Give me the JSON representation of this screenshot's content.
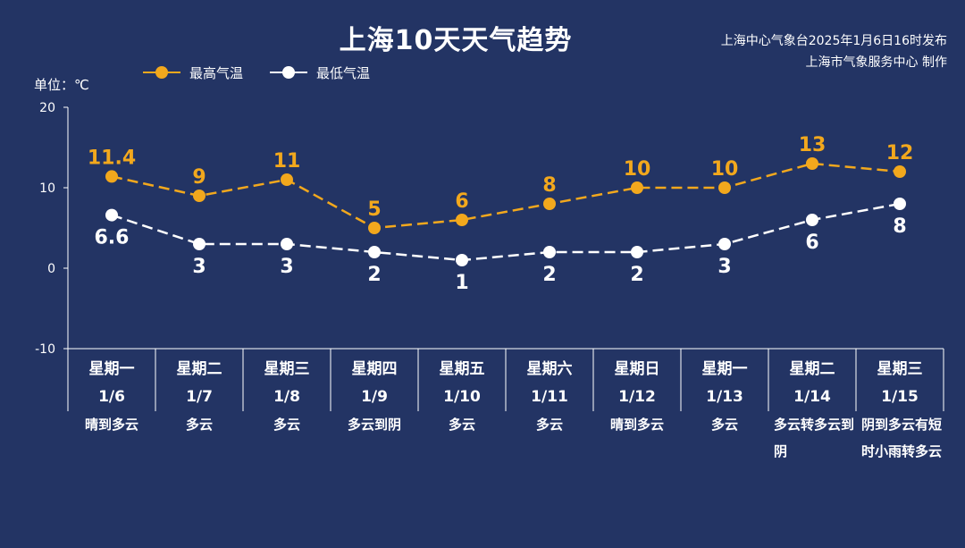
{
  "title": "上海10天天气趋势",
  "source_line1": "上海中心气象台2025年1月6日16时发布",
  "source_line2": "上海市气象服务中心 制作",
  "unit_label": "单位：℃",
  "colors": {
    "background": "#233464",
    "high": "#f2a81d",
    "low": "#ffffff",
    "axis": "#ffffff"
  },
  "chart_data": {
    "type": "line",
    "title": "上海10天天气趋势",
    "ylabel": "单位：℃",
    "ylim": [
      -10,
      20
    ],
    "yticks": [
      -10,
      0,
      10,
      20
    ],
    "legend_position": "top-left",
    "grid": false,
    "columns": [
      {
        "weekday": "星期一",
        "date": "1/6",
        "weather": "晴到多云"
      },
      {
        "weekday": "星期二",
        "date": "1/7",
        "weather": "多云"
      },
      {
        "weekday": "星期三",
        "date": "1/8",
        "weather": "多云"
      },
      {
        "weekday": "星期四",
        "date": "1/9",
        "weather": "多云到阴"
      },
      {
        "weekday": "星期五",
        "date": "1/10",
        "weather": "多云"
      },
      {
        "weekday": "星期六",
        "date": "1/11",
        "weather": "多云"
      },
      {
        "weekday": "星期日",
        "date": "1/12",
        "weather": "晴到多云"
      },
      {
        "weekday": "星期一",
        "date": "1/13",
        "weather": "多云"
      },
      {
        "weekday": "星期二",
        "date": "1/14",
        "weather": "多云转多云到阴"
      },
      {
        "weekday": "星期三",
        "date": "1/15",
        "weather": "阴到多云有短时小雨转多云"
      }
    ],
    "series": [
      {
        "name": "最高气温",
        "values": [
          11.4,
          9,
          11,
          5,
          6,
          8,
          10,
          10,
          13,
          12
        ],
        "labels": [
          "11.4",
          "9",
          "11",
          "5",
          "6",
          "8",
          "10",
          "10",
          "13",
          "12"
        ]
      },
      {
        "name": "最低气温",
        "values": [
          6.6,
          3,
          3,
          2,
          1,
          2,
          2,
          3,
          6,
          8
        ],
        "labels": [
          "6.6",
          "3",
          "3",
          "2",
          "1",
          "2",
          "2",
          "3",
          "6",
          "8"
        ]
      }
    ]
  }
}
